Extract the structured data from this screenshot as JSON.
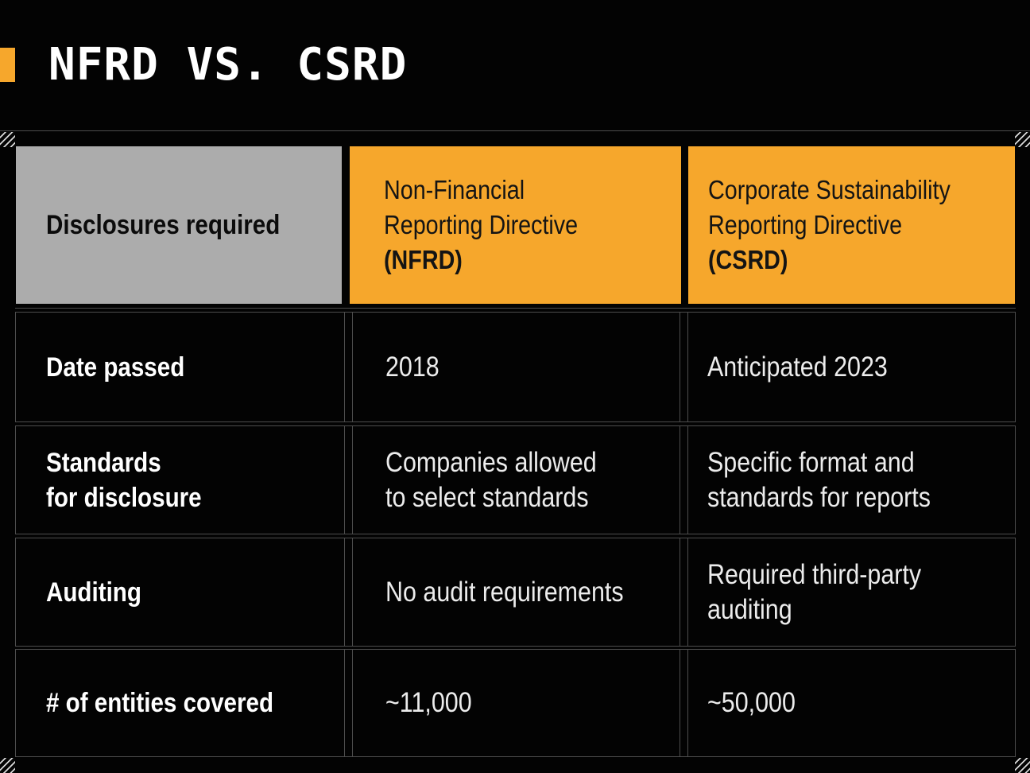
{
  "title": "NFRD VS. CSRD",
  "colors": {
    "background": "#030303",
    "accent_yellow": "#F6A72C",
    "header_gray": "#ACACAC",
    "grid_line": "#4d4d4d",
    "label_text": "#ffffff",
    "value_text": "#ececec",
    "header_text_dark": "#141414"
  },
  "decorations": {
    "hatch_icon": "diagonal-stripes"
  },
  "table": {
    "header": [
      {
        "lines": [
          "Disclosures required"
        ]
      },
      {
        "lines": [
          "Non-Financial",
          "Reporting Directive"
        ],
        "abbr": "(NFRD)"
      },
      {
        "lines": [
          "Corporate Sustainability",
          "Reporting Directive"
        ],
        "abbr": "(CSRD)"
      }
    ],
    "rows": [
      {
        "label_lines": [
          "Date passed"
        ],
        "nfrd_lines": [
          "2018"
        ],
        "csrd_lines": [
          "Anticipated 2023"
        ]
      },
      {
        "label_lines": [
          "Standards",
          "for disclosure"
        ],
        "nfrd_lines": [
          "Companies allowed",
          "to select standards"
        ],
        "csrd_lines": [
          "Specific format and",
          "standards for reports"
        ]
      },
      {
        "label_lines": [
          "Auditing"
        ],
        "nfrd_lines": [
          "No audit requirements"
        ],
        "csrd_lines": [
          "Required third-party",
          "auditing"
        ]
      },
      {
        "label_lines": [
          "# of entities covered"
        ],
        "nfrd_lines": [
          "~11,000"
        ],
        "csrd_lines": [
          "~50,000"
        ]
      }
    ]
  }
}
